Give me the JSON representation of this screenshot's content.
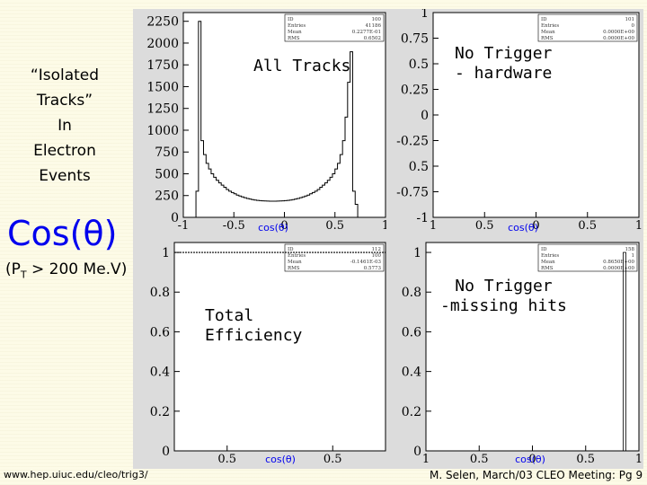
{
  "side_title": {
    "line1": "“Isolated",
    "line2": "Tracks”",
    "line3": "In",
    "line4": "Electron",
    "line5": "Events"
  },
  "variable": {
    "label": "Cos(θ)",
    "cut_prefix": "(P",
    "cut_sub": "T",
    "cut_suffix": " > 200 Me.V)"
  },
  "footer": {
    "url": "www.hep.uiuc.edu/cleo/trig3/",
    "credit": "M. Selen, March/03 CLEO Meeting: Pg 9"
  },
  "colors": {
    "background": "#fdfbe7",
    "frame": "#dcdcdc",
    "plot_bg": "#ffffff",
    "axis_label": "#0000ee",
    "histogram": "#000000"
  },
  "chart_data": [
    {
      "id": "all_tracks",
      "type": "bar",
      "title": "",
      "overlay_label": "All Tracks",
      "xlabel": "cos(θ)",
      "ylabel": "",
      "xlim": [
        -1,
        1
      ],
      "ylim": [
        0,
        2350
      ],
      "x_ticks": [
        "-1",
        "-0.5",
        "0",
        "0.5",
        "1"
      ],
      "y_ticks": [
        "0",
        "250",
        "500",
        "750",
        "1000",
        "1250",
        "1500",
        "1750",
        "2000",
        "2250"
      ],
      "grid": false,
      "bin_edges_start": -0.875,
      "bin_width": 0.025,
      "values": [
        300,
        2250,
        880,
        720,
        620,
        555,
        500,
        460,
        425,
        395,
        370,
        345,
        320,
        300,
        285,
        270,
        255,
        245,
        235,
        225,
        217,
        210,
        204,
        199,
        195,
        192,
        190,
        188,
        187,
        186,
        186,
        186,
        187,
        188,
        190,
        192,
        195,
        199,
        204,
        210,
        217,
        225,
        235,
        245,
        255,
        270,
        285,
        300,
        320,
        345,
        370,
        395,
        425,
        460,
        500,
        555,
        620,
        720,
        880,
        1150,
        1550,
        1900,
        300,
        150
      ],
      "stats_box": [
        "ID 100",
        "Entries 41186",
        "Mean 0.2277E-01",
        "RMS 0.6502"
      ]
    },
    {
      "id": "no_trigger_hardware",
      "type": "bar",
      "title": "",
      "overlay_label_line1": "No Trigger",
      "overlay_label_line2": "- hardware",
      "xlabel": "cos(θ)",
      "ylabel": "",
      "xlim": [
        -1,
        1
      ],
      "ylim": [
        -1,
        1
      ],
      "x_ticks": [
        "1",
        "0.5",
        "0",
        "0.5",
        "1"
      ],
      "y_ticks": [
        "1",
        "0.75",
        "0.5",
        "0.25",
        "0",
        "-0.25",
        "0.5",
        "-0.75",
        "-1"
      ],
      "grid": false,
      "values": [],
      "stats_box": [
        "ID 101",
        "Entries 0",
        "Mean 0.0000E+00",
        "RMS 0.0000E+00"
      ]
    },
    {
      "id": "total_efficiency",
      "type": "line",
      "title": "",
      "overlay_label_line1": "Total",
      "overlay_label_line2": "Efficiency",
      "xlabel": "cos(θ)",
      "ylabel": "",
      "xlim": [
        -1,
        1
      ],
      "ylim": [
        0,
        1.05
      ],
      "x_ticks": [
        "0.5",
        "0.5"
      ],
      "y_ticks": [
        "0",
        "0.2",
        "0.4",
        "0.6",
        "0.8",
        "1"
      ],
      "grid": false,
      "x": [
        -1,
        1
      ],
      "y": [
        1.0,
        1.0
      ],
      "stats_box": [
        "ID 112",
        "Entries 100",
        "Mean -0.1461E-03",
        "RMS 0.5773"
      ]
    },
    {
      "id": "no_trigger_missing_hits",
      "type": "bar",
      "title": "",
      "overlay_label_line1": "No Trigger",
      "overlay_label_line2": "-missing hits",
      "xlabel": "cos(θ)",
      "ylabel": "",
      "xlim": [
        -1,
        1
      ],
      "ylim": [
        0,
        1.05
      ],
      "x_ticks": [
        "1",
        "0.5",
        "0",
        "0.5",
        "1"
      ],
      "y_ticks": [
        "0",
        "0.2",
        "0.4",
        "0.6",
        "0.8",
        "1"
      ],
      "grid": false,
      "spike_x": 0.865,
      "spike_value": 1.0,
      "stats_box": [
        "ID 158",
        "Entries 1",
        "Mean 0.8650E+00",
        "RMS 0.0000E+00"
      ]
    }
  ]
}
